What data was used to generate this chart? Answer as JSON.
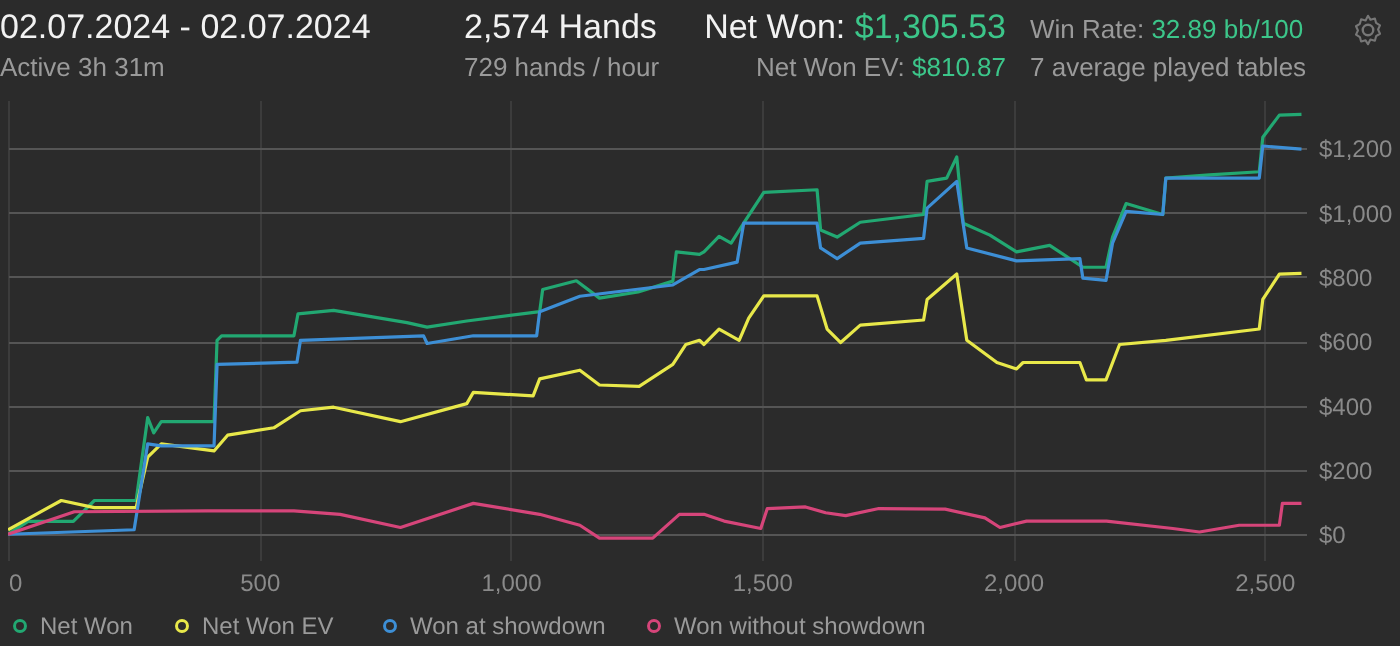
{
  "chart_data": {
    "type": "line",
    "title": "02.07.2024 - 02.07.2024",
    "subtitle": "Active 3h 31m",
    "annotations": [
      "2,574 Hands",
      "729 hands / hour",
      "Net Won: $1,305.53",
      "Net Won  EV: $810.87",
      "Win Rate: 32.89 bb/100",
      "7 average played tables"
    ],
    "xlim": [
      0,
      2583
    ],
    "xticks": [
      0,
      500,
      {
        "value": 1000,
        "label": "1,000"
      },
      {
        "value": 1500,
        "label": "1,500"
      },
      {
        "value": 2000,
        "label": "2,000"
      },
      {
        "value": 2500,
        "label": "2,500"
      }
    ],
    "ylim": [
      -80,
      1350
    ],
    "yticks": [
      {
        "value": 0,
        "label": "$0"
      },
      {
        "value": 200,
        "label": "$200"
      },
      {
        "value": 400,
        "label": "$400"
      },
      {
        "value": 600,
        "label": "$600"
      },
      {
        "value": 800,
        "label": "$800"
      },
      {
        "value": 1000,
        "label": "$1,000"
      },
      {
        "value": 1200,
        "label": "$1,200"
      }
    ],
    "grid": true,
    "legend": "bottom",
    "line_style": "solid",
    "marker": "none",
    "series": [
      {
        "name": "Net Won",
        "color": "#22a872",
        "x": [
          0,
          40,
          130,
          172,
          255,
          278,
          290,
          305,
          410,
          416,
          425,
          569,
          577,
          648,
          794,
          834,
          913,
          1058,
          1064,
          1131,
          1177,
          1254,
          1323,
          1330,
          1376,
          1385,
          1415,
          1439,
          1464,
          1504,
          1610,
          1617,
          1650,
          1696,
          1822,
          1829,
          1868,
          1888,
          1901,
          1954,
          2007,
          2073,
          2139,
          2185,
          2198,
          2225,
          2298,
          2304,
          2391,
          2490,
          2497,
          2530,
          2574
        ],
        "values": [
          0,
          40,
          40,
          105,
          105,
          363,
          315,
          350,
          350,
          603,
          617,
          617,
          685,
          696,
          658,
          644,
          663,
          692,
          761,
          788,
          734,
          753,
          787,
          878,
          870,
          878,
          926,
          905,
          967,
          1063,
          1071,
          946,
          924,
          970,
          994,
          1097,
          1107,
          1173,
          967,
          930,
          878,
          898,
          830,
          830,
          924,
          1028,
          994,
          1107,
          1117,
          1127,
          1234,
          1303,
          1305.53
        ]
      },
      {
        "name": "Net Won  EV",
        "color": "#e8e84a",
        "x": [
          0,
          106,
          172,
          255,
          278,
          305,
          410,
          437,
          529,
          582,
          648,
          781,
          913,
          926,
          1045,
          1058,
          1138,
          1177,
          1256,
          1323,
          1349,
          1376,
          1385,
          1415,
          1455,
          1474,
          1504,
          1610,
          1630,
          1657,
          1696,
          1822,
          1829,
          1888,
          1908,
          1968,
          2007,
          2020,
          2133,
          2146,
          2185,
          2212,
          2304,
          2490,
          2497,
          2530,
          2574
        ],
        "values": [
          14,
          105,
          83,
          83,
          240,
          281,
          259,
          308,
          331,
          384,
          395,
          350,
          406,
          441,
          430,
          483,
          510,
          464,
          460,
          528,
          590,
          603,
          590,
          638,
          603,
          672,
          741,
          741,
          638,
          596,
          650,
          666,
          730,
          809,
          603,
          534,
          514,
          534,
          534,
          480,
          480,
          590,
          603,
          638,
          730,
          809,
          810.87
        ]
      },
      {
        "name": "Won at showdown",
        "color": "#3d8fd6",
        "x": [
          0,
          251,
          278,
          305,
          410,
          416,
          575,
          582,
          827,
          834,
          926,
          1052,
          1058,
          1138,
          1323,
          1376,
          1385,
          1451,
          1464,
          1610,
          1617,
          1650,
          1696,
          1822,
          1829,
          1888,
          1908,
          2007,
          2133,
          2139,
          2185,
          2198,
          2225,
          2298,
          2304,
          2490,
          2497,
          2574
        ],
        "values": [
          0,
          14,
          281,
          275,
          275,
          528,
          535,
          603,
          617,
          593,
          617,
          617,
          692,
          740,
          775,
          823,
          823,
          846,
          967,
          967,
          890,
          857,
          905,
          920,
          1014,
          1097,
          890,
          850,
          857,
          796,
          789,
          905,
          1004,
          994,
          1107,
          1107,
          1207,
          1197
        ]
      },
      {
        "name": "Won without showdown",
        "color": "#d6457a",
        "x": [
          0,
          132,
          397,
          569,
          661,
          781,
          926,
          1058,
          1138,
          1177,
          1283,
          1336,
          1376,
          1385,
          1425,
          1498,
          1511,
          1587,
          1627,
          1667,
          1733,
          1865,
          1944,
          1974,
          2027,
          2186,
          2318,
          2371,
          2450,
          2530,
          2536,
          2574
        ],
        "values": [
          0,
          70,
          73,
          73,
          62,
          21,
          96,
          62,
          28,
          -12,
          -12,
          62,
          62,
          62,
          41,
          18,
          80,
          85,
          67,
          58,
          80,
          78,
          51,
          21,
          41,
          41,
          18,
          7,
          28,
          28,
          96,
          96
        ]
      }
    ]
  }
}
